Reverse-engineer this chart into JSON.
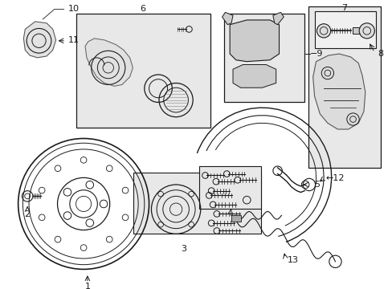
{
  "bg_color": "#ffffff",
  "lc": "#1a1a1a",
  "gray_fill": "#e8e8e8",
  "fig_w": 4.89,
  "fig_h": 3.6,
  "dpi": 100
}
